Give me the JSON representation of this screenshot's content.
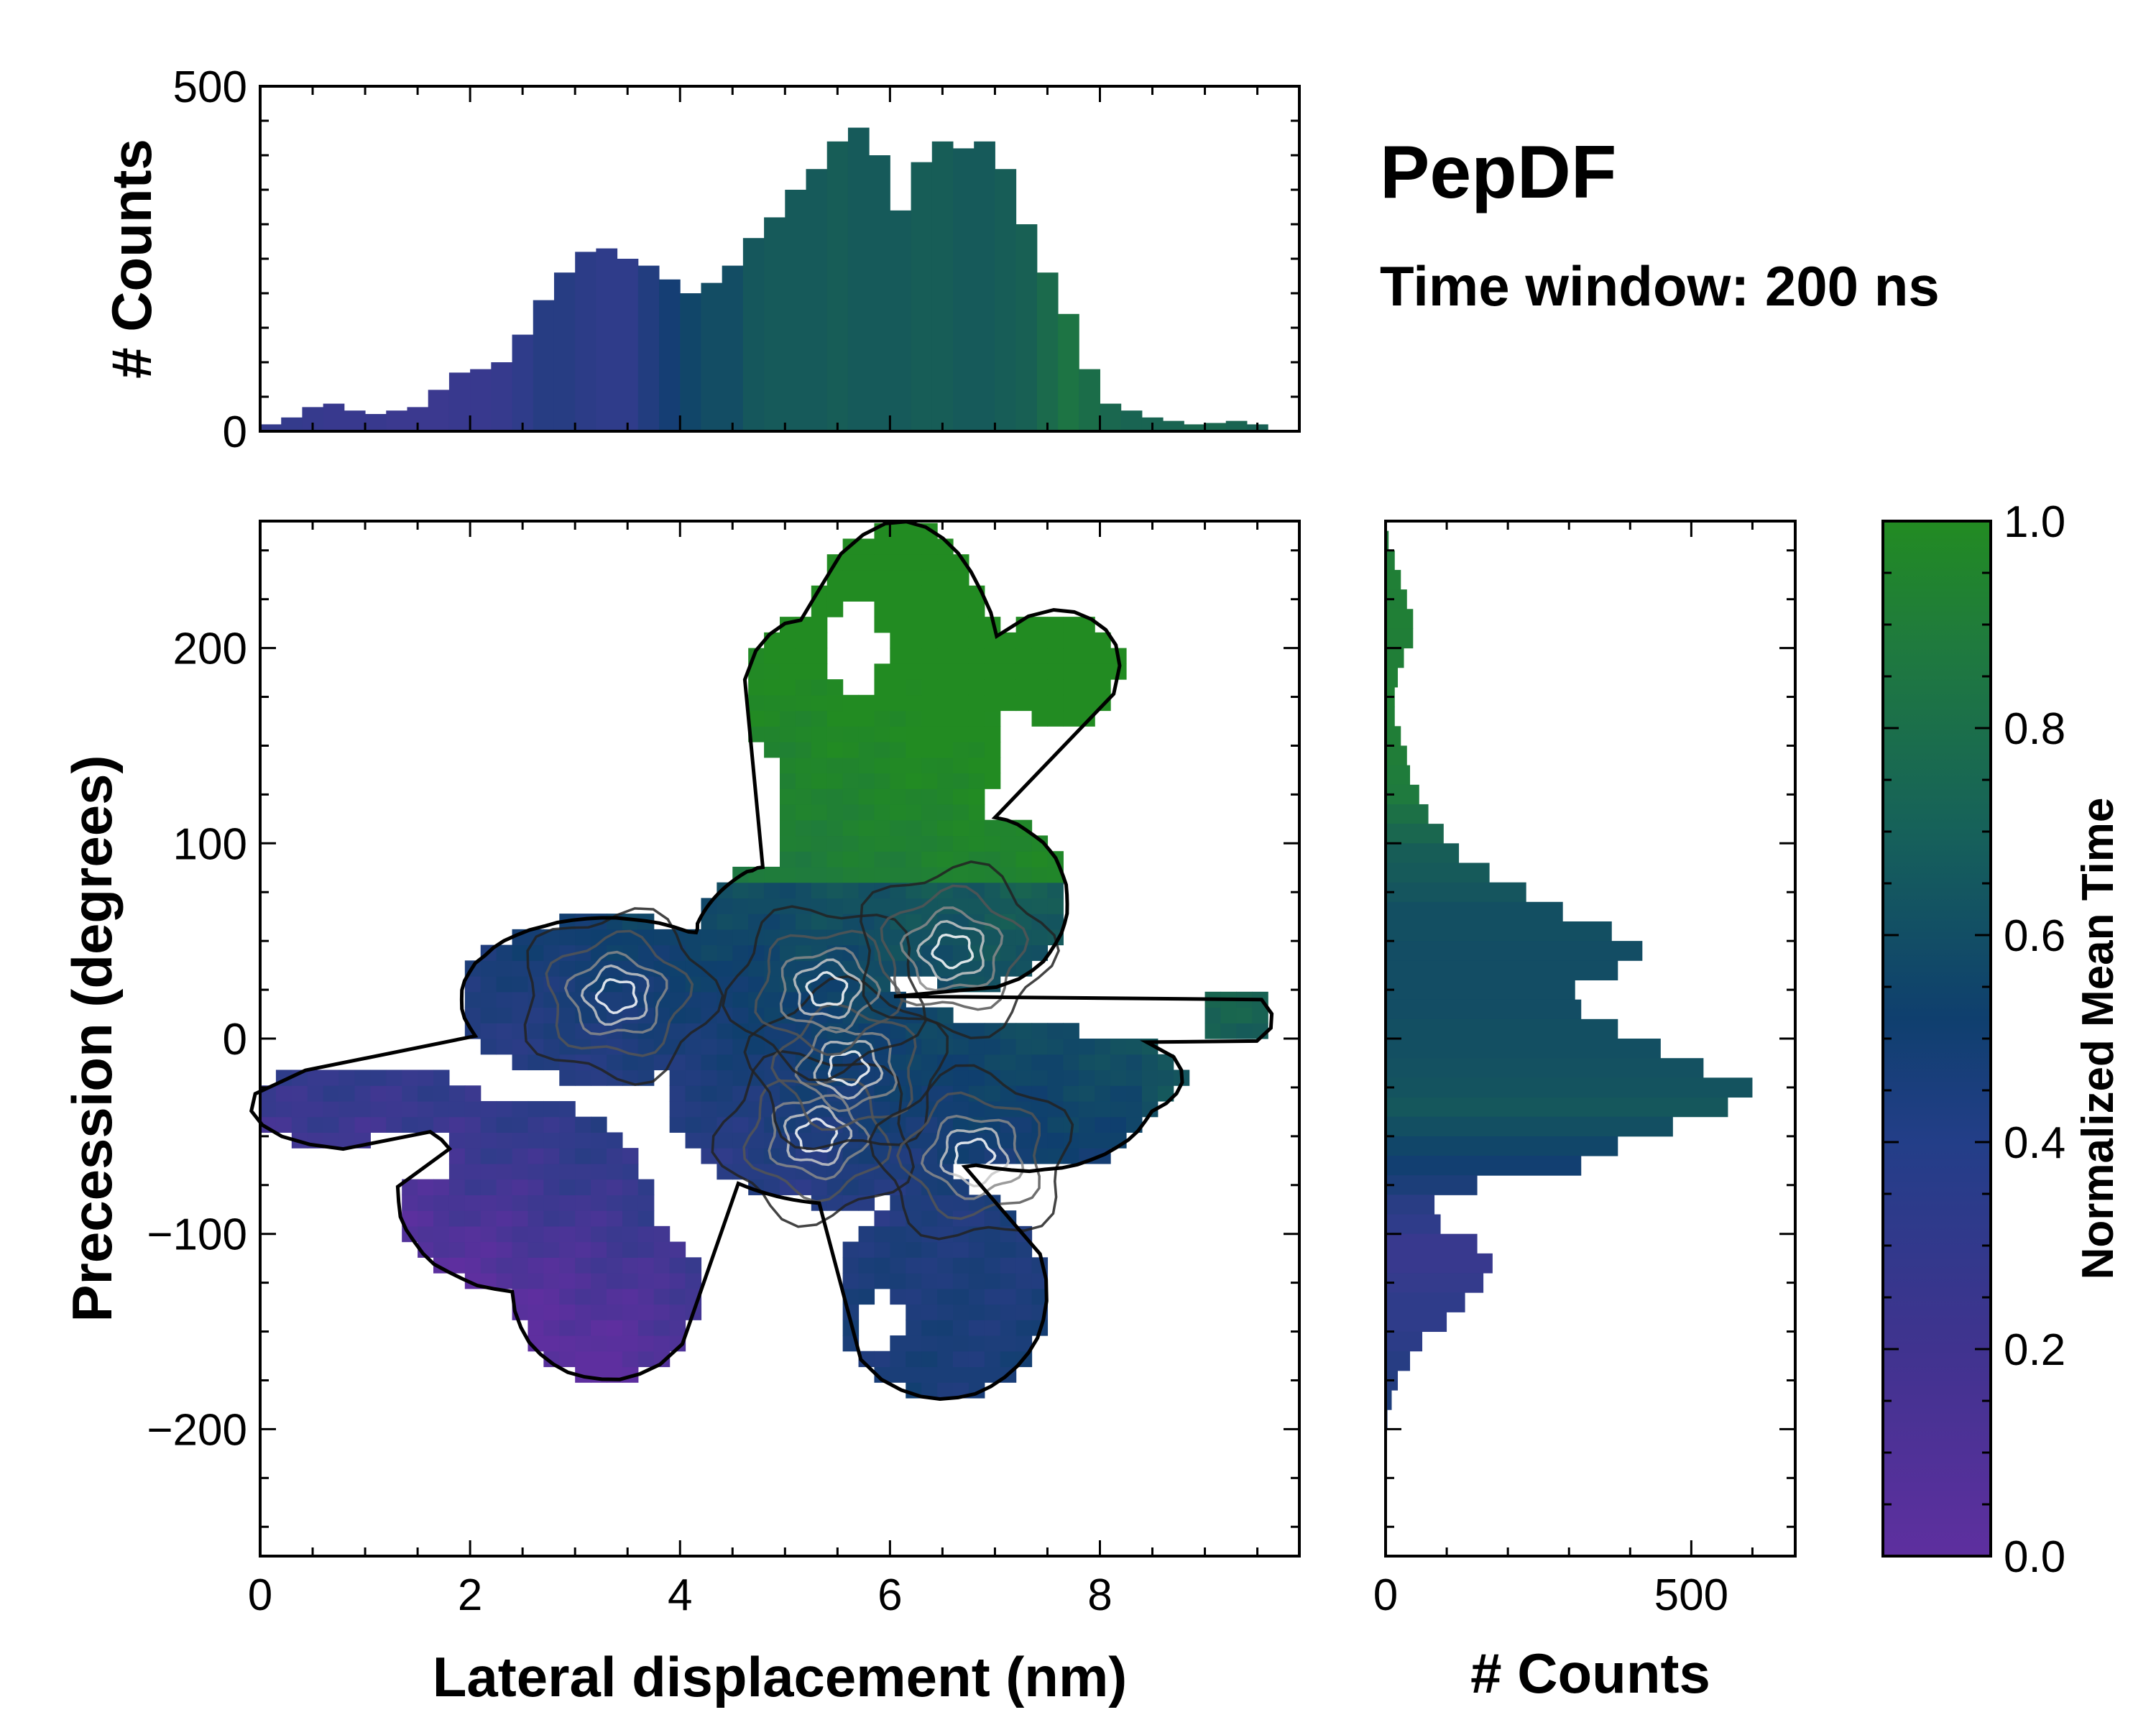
{
  "chart_data": {
    "type": "heatmap",
    "title": "PepDF",
    "subtitle": "Time window: 200 ns",
    "main": {
      "xlabel": "Lateral displacement (nm)",
      "ylabel": "Precession (degrees)",
      "xlim": [
        0,
        9.9
      ],
      "ylim": [
        -265,
        265
      ],
      "xticks": [
        0,
        2,
        4,
        6,
        8
      ],
      "yticks": [
        -200,
        -100,
        0,
        100,
        200
      ],
      "xtick_labels": [
        "0",
        "2",
        "4",
        "6",
        "8"
      ],
      "ytick_labels": [
        "−200",
        "−100",
        "0",
        "100",
        "200"
      ],
      "density_peaks": [
        {
          "x": 5.3,
          "y": -50
        },
        {
          "x": 5.6,
          "y": -15
        },
        {
          "x": 3.4,
          "y": 22
        },
        {
          "x": 5.4,
          "y": 25
        },
        {
          "x": 6.8,
          "y": -60
        },
        {
          "x": 6.6,
          "y": 45
        }
      ]
    },
    "top_histogram": {
      "ylabel": "# Counts",
      "ylim": [
        0,
        500
      ],
      "yticks": [
        0,
        500
      ],
      "ytick_labels": [
        "0",
        "500"
      ],
      "x": [
        0.1,
        0.3,
        0.5,
        0.7,
        0.9,
        1.1,
        1.3,
        1.5,
        1.7,
        1.9,
        2.1,
        2.3,
        2.5,
        2.7,
        2.9,
        3.1,
        3.3,
        3.5,
        3.7,
        3.9,
        4.1,
        4.3,
        4.5,
        4.7,
        4.9,
        5.1,
        5.3,
        5.5,
        5.7,
        5.9,
        6.1,
        6.3,
        6.5,
        6.7,
        6.9,
        7.1,
        7.3,
        7.5,
        7.7,
        7.9,
        8.1,
        8.3,
        8.5,
        8.7,
        8.9,
        9.1,
        9.3,
        9.5
      ],
      "values": [
        10,
        20,
        35,
        40,
        30,
        25,
        30,
        35,
        60,
        85,
        90,
        100,
        140,
        190,
        230,
        260,
        265,
        250,
        240,
        220,
        200,
        215,
        240,
        280,
        310,
        350,
        380,
        420,
        440,
        400,
        320,
        390,
        420,
        410,
        420,
        380,
        300,
        230,
        170,
        90,
        40,
        30,
        20,
        15,
        10,
        12,
        15,
        10
      ],
      "mean_time": [
        0.18,
        0.18,
        0.17,
        0.16,
        0.16,
        0.16,
        0.15,
        0.15,
        0.15,
        0.16,
        0.16,
        0.17,
        0.2,
        0.25,
        0.25,
        0.22,
        0.2,
        0.2,
        0.28,
        0.36,
        0.45,
        0.5,
        0.5,
        0.58,
        0.6,
        0.6,
        0.6,
        0.62,
        0.6,
        0.6,
        0.6,
        0.62,
        0.62,
        0.6,
        0.6,
        0.62,
        0.64,
        0.7,
        0.76,
        0.72,
        0.68,
        0.66,
        0.66,
        0.66,
        0.68,
        0.68,
        0.66,
        0.64
      ]
    },
    "right_histogram": {
      "xlabel": "# Counts",
      "xlim": [
        0,
        670
      ],
      "xticks": [
        0,
        500
      ],
      "xtick_labels": [
        "0",
        "500"
      ],
      "y": [
        255,
        245,
        235,
        225,
        215,
        205,
        195,
        185,
        175,
        165,
        155,
        145,
        135,
        125,
        115,
        105,
        95,
        85,
        75,
        65,
        55,
        45,
        35,
        25,
        15,
        5,
        -5,
        -15,
        -25,
        -35,
        -45,
        -55,
        -65,
        -75,
        -85,
        -95,
        -105,
        -115,
        -125,
        -135,
        -145,
        -155,
        -165,
        -175,
        -185,
        -195
      ],
      "values": [
        5,
        15,
        25,
        35,
        45,
        45,
        30,
        20,
        15,
        15,
        25,
        35,
        40,
        55,
        70,
        95,
        120,
        170,
        230,
        290,
        370,
        420,
        380,
        310,
        320,
        380,
        450,
        520,
        600,
        560,
        470,
        380,
        320,
        150,
        80,
        90,
        150,
        175,
        160,
        130,
        100,
        60,
        40,
        20,
        10,
        3
      ],
      "mean_time": [
        0.82,
        0.84,
        0.86,
        0.85,
        0.86,
        0.85,
        0.85,
        0.86,
        0.87,
        0.86,
        0.85,
        0.84,
        0.82,
        0.8,
        0.74,
        0.68,
        0.62,
        0.6,
        0.56,
        0.52,
        0.52,
        0.5,
        0.5,
        0.5,
        0.5,
        0.52,
        0.52,
        0.53,
        0.55,
        0.58,
        0.52,
        0.45,
        0.38,
        0.32,
        0.24,
        0.2,
        0.16,
        0.16,
        0.18,
        0.2,
        0.2,
        0.22,
        0.25,
        0.27,
        0.3,
        0.3
      ]
    },
    "colorbar": {
      "label": "Normalized Mean Time",
      "range": [
        0,
        1
      ],
      "ticks": [
        0.0,
        0.2,
        0.4,
        0.6,
        0.8,
        1.0
      ],
      "tick_labels": [
        "0.0",
        "0.2",
        "0.4",
        "0.6",
        "0.8",
        "1.0"
      ],
      "colors": [
        "#5e2f9f",
        "#2f3c8a",
        "#0f3f6e",
        "#165a5a",
        "#1f7a3e",
        "#228b22"
      ]
    }
  }
}
